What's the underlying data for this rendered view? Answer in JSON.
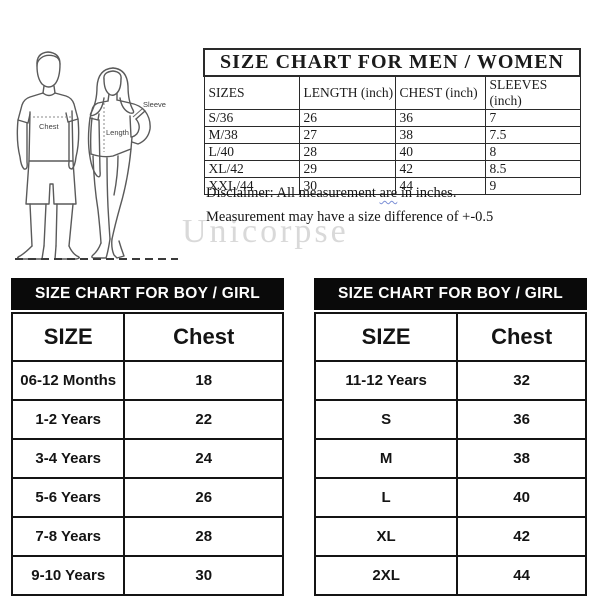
{
  "illustration": {
    "chest_label": "Chest",
    "length_label": "Length",
    "sleeve_label": "Sleeve"
  },
  "men_women_table": {
    "title": "SIZE CHART FOR MEN / WOMEN",
    "columns": [
      "SIZES",
      "LENGTH (inch)",
      "CHEST (inch)",
      "SLEEVES (inch)"
    ],
    "rows": [
      [
        "S/36",
        "26",
        "36",
        "7"
      ],
      [
        "M/38",
        "27",
        "38",
        "7.5"
      ],
      [
        "L/40",
        "28",
        "40",
        "8"
      ],
      [
        "XL/42",
        "29",
        "42",
        "8.5"
      ],
      [
        "XXL/44",
        "30",
        "44",
        "9"
      ]
    ]
  },
  "disclaimer": {
    "line1_prefix": "Disclaimer: All measurement ",
    "line1_word": "are",
    "line1_suffix": " in inches.",
    "line2": "Measurement may have a size difference of +-0.5"
  },
  "watermark": "Unicorpse",
  "boy_girl_table_left": {
    "title": "SIZE CHART FOR BOY / GIRL",
    "columns": [
      "SIZE",
      "Chest"
    ],
    "rows": [
      [
        "06-12 Months",
        "18"
      ],
      [
        "1-2 Years",
        "22"
      ],
      [
        "3-4 Years",
        "24"
      ],
      [
        "5-6 Years",
        "26"
      ],
      [
        "7-8 Years",
        "28"
      ],
      [
        "9-10 Years",
        "30"
      ]
    ]
  },
  "boy_girl_table_right": {
    "title": "SIZE CHART FOR BOY / GIRL",
    "columns": [
      "SIZE",
      "Chest"
    ],
    "rows": [
      [
        "11-12 Years",
        "32"
      ],
      [
        "S",
        "36"
      ],
      [
        "M",
        "38"
      ],
      [
        "L",
        "40"
      ],
      [
        "XL",
        "42"
      ],
      [
        "2XL",
        "44"
      ]
    ]
  },
  "colors": {
    "title_bar_bg": "#0a0a0a",
    "title_bar_text": "#ffffff",
    "table_border": "#141414",
    "squiggle_underline": "#7b8fd6",
    "watermark_gray": "#b9b9b9"
  }
}
